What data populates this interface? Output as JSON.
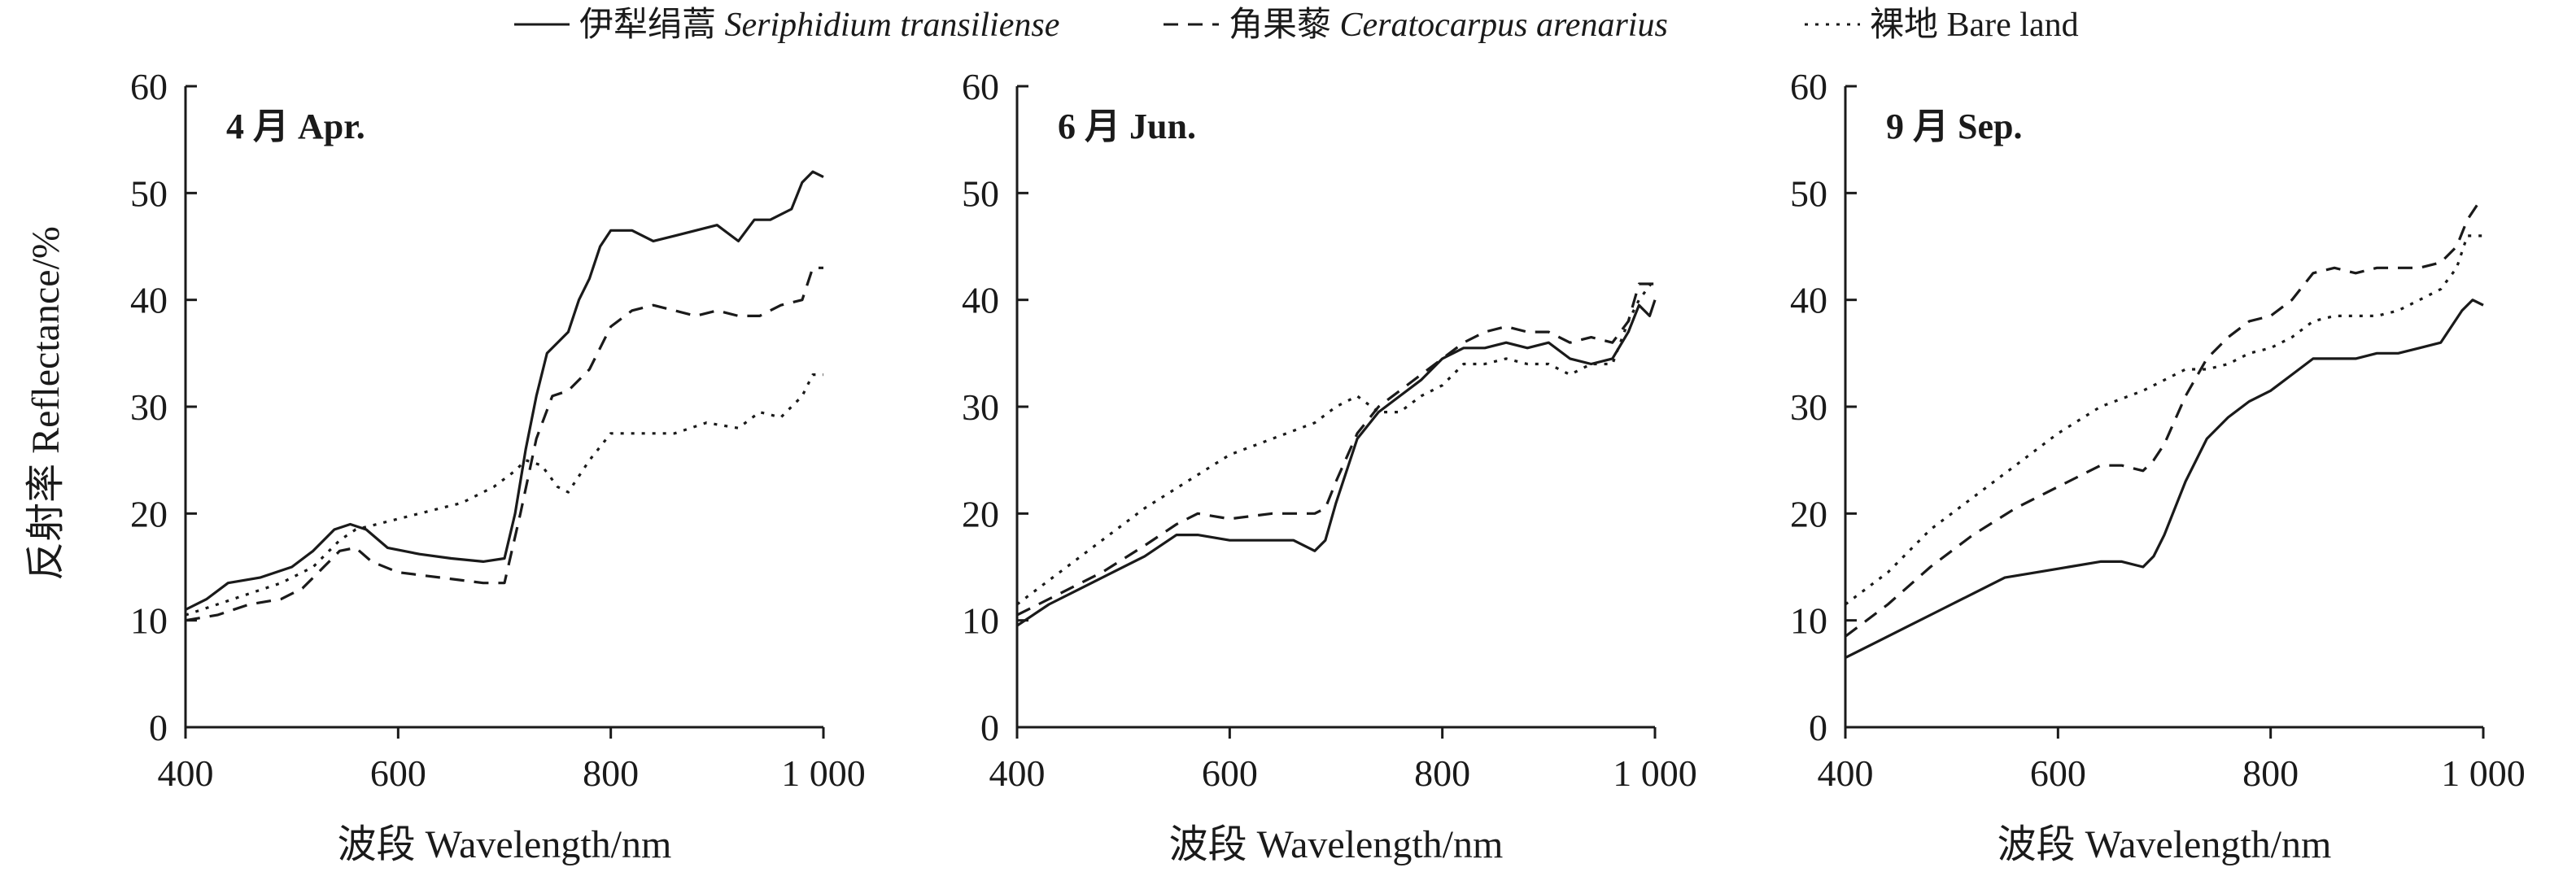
{
  "legend": {
    "items": [
      {
        "prefix": "伊犁绢蒿 ",
        "name": "Seriphidium transiliense",
        "dash": "solid"
      },
      {
        "prefix": "角果藜 ",
        "name": "Ceratocarpus arenarius",
        "dash": "dashed"
      },
      {
        "prefix": "裸地 ",
        "name": "Bare land",
        "dash": "dotted"
      }
    ]
  },
  "y_axis_title": "反射率 Reflectance/%",
  "chart_data": [
    {
      "type": "line",
      "panel_label": "4 月 Apr.",
      "xlabel": "波段 Wavelength/nm",
      "ylabel": "反射率 Reflectance/%",
      "xlim": [
        400,
        1000
      ],
      "ylim": [
        0,
        60
      ],
      "x_ticks": [
        400,
        600,
        800,
        1000
      ],
      "x_tick_labels": [
        "400",
        "600",
        "800",
        "1 000"
      ],
      "y_ticks": [
        0,
        10,
        20,
        30,
        40,
        50,
        60
      ],
      "y_tick_labels": [
        "0",
        "10",
        "20",
        "30",
        "40",
        "50",
        "60"
      ],
      "series": [
        {
          "name": "伊犁绢蒿 Seriphidium transiliense",
          "dash": "solid",
          "x": [
            400,
            420,
            440,
            470,
            500,
            520,
            540,
            555,
            570,
            590,
            620,
            650,
            680,
            700,
            710,
            720,
            730,
            740,
            750,
            760,
            770,
            780,
            790,
            800,
            820,
            840,
            860,
            880,
            900,
            920,
            935,
            950,
            970,
            980,
            990,
            1000
          ],
          "y": [
            11,
            12,
            13.5,
            14,
            15,
            16.5,
            18.5,
            19,
            18.5,
            16.8,
            16.2,
            15.8,
            15.5,
            15.8,
            20,
            26,
            31,
            35,
            36,
            37,
            40,
            42,
            45,
            46.5,
            46.5,
            45.5,
            46,
            46.5,
            47,
            45.5,
            47.5,
            47.5,
            48.5,
            51,
            52,
            51.5
          ]
        },
        {
          "name": "角果藜 Ceratocarpus arenarius",
          "dash": "dashed",
          "x": [
            400,
            430,
            460,
            490,
            510,
            530,
            545,
            560,
            575,
            600,
            640,
            680,
            700,
            715,
            730,
            745,
            760,
            780,
            800,
            820,
            840,
            860,
            880,
            900,
            920,
            940,
            960,
            980,
            990,
            1000
          ],
          "y": [
            10,
            10.5,
            11.5,
            12,
            13,
            15,
            16.5,
            16.8,
            15.5,
            14.5,
            14,
            13.5,
            13.5,
            20,
            27,
            31,
            31.5,
            33.5,
            37.5,
            39,
            39.5,
            39,
            38.5,
            39,
            38.5,
            38.5,
            39.5,
            40,
            43,
            43
          ]
        },
        {
          "name": "裸地 Bare land",
          "dash": "dotted",
          "x": [
            400,
            430,
            460,
            490,
            520,
            545,
            560,
            580,
            620,
            660,
            690,
            710,
            720,
            735,
            750,
            760,
            780,
            800,
            830,
            860,
            890,
            920,
            940,
            960,
            980,
            990,
            1000
          ],
          "y": [
            10.5,
            11.5,
            12.5,
            13.5,
            15,
            17.5,
            18.5,
            19,
            20,
            21,
            22.5,
            24,
            25,
            24.5,
            22.5,
            22,
            25,
            27.5,
            27.5,
            27.5,
            28.5,
            28,
            29.5,
            29,
            31,
            33,
            33
          ]
        }
      ]
    },
    {
      "type": "line",
      "panel_label": "6 月 Jun.",
      "xlabel": "波段 Wavelength/nm",
      "ylabel": "",
      "xlim": [
        400,
        1000
      ],
      "ylim": [
        0,
        60
      ],
      "x_ticks": [
        400,
        600,
        800,
        1000
      ],
      "x_tick_labels": [
        "400",
        "600",
        "800",
        "1 000"
      ],
      "y_ticks": [
        0,
        10,
        20,
        30,
        40,
        50,
        60
      ],
      "y_tick_labels": [
        "0",
        "10",
        "20",
        "30",
        "40",
        "50",
        "60"
      ],
      "series": [
        {
          "name": "伊犁绢蒿 Seriphidium transiliense",
          "dash": "solid",
          "x": [
            400,
            430,
            460,
            490,
            520,
            550,
            570,
            600,
            630,
            660,
            680,
            690,
            700,
            720,
            740,
            760,
            780,
            800,
            820,
            840,
            860,
            880,
            900,
            920,
            940,
            960,
            975,
            985,
            995,
            1000
          ],
          "y": [
            9.5,
            11.5,
            13,
            14.5,
            16,
            18,
            18,
            17.5,
            17.5,
            17.5,
            16.5,
            17.5,
            21,
            27,
            29.5,
            31,
            32.5,
            34.5,
            35.5,
            35.5,
            36,
            35.5,
            36,
            34.5,
            34,
            34.5,
            37,
            39.5,
            38.5,
            40
          ]
        },
        {
          "name": "角果藜 Ceratocarpus arenarius",
          "dash": "dashed",
          "x": [
            400,
            440,
            480,
            520,
            550,
            570,
            600,
            640,
            680,
            690,
            700,
            720,
            740,
            760,
            780,
            800,
            820,
            840,
            860,
            880,
            900,
            920,
            940,
            960,
            975,
            985,
            1000
          ],
          "y": [
            10.5,
            12.5,
            14.5,
            17,
            19,
            20,
            19.5,
            20,
            20,
            20.5,
            23,
            27.5,
            30,
            31.5,
            33,
            34.5,
            36,
            37,
            37.5,
            37,
            37,
            36,
            36.5,
            36,
            38,
            41.5,
            41.5
          ]
        },
        {
          "name": "裸地 Bare land",
          "dash": "dotted",
          "x": [
            400,
            440,
            480,
            520,
            560,
            600,
            640,
            680,
            700,
            710,
            720,
            740,
            760,
            780,
            800,
            820,
            840,
            860,
            880,
            900,
            920,
            940,
            960,
            975,
            985,
            1000
          ],
          "y": [
            11.5,
            14.5,
            17.5,
            20.5,
            23,
            25.5,
            27,
            28.5,
            30,
            30.5,
            31,
            29.5,
            29.5,
            31,
            32,
            34,
            34,
            34.5,
            34,
            34,
            33,
            34,
            34,
            38,
            40,
            42
          ]
        }
      ]
    },
    {
      "type": "line",
      "panel_label": "9 月 Sep.",
      "xlabel": "波段 Wavelength/nm",
      "ylabel": "",
      "xlim": [
        400,
        1000
      ],
      "ylim": [
        0,
        60
      ],
      "x_ticks": [
        400,
        600,
        800,
        1000
      ],
      "x_tick_labels": [
        "400",
        "600",
        "800",
        "1 000"
      ],
      "y_ticks": [
        0,
        10,
        20,
        30,
        40,
        50,
        60
      ],
      "y_tick_labels": [
        "0",
        "10",
        "20",
        "30",
        "40",
        "50",
        "60"
      ],
      "series": [
        {
          "name": "伊犁绢蒿 Seriphidium transiliense",
          "dash": "solid",
          "x": [
            400,
            430,
            460,
            490,
            520,
            550,
            580,
            610,
            640,
            660,
            680,
            690,
            700,
            720,
            740,
            760,
            780,
            800,
            820,
            840,
            860,
            880,
            900,
            920,
            940,
            960,
            980,
            990,
            1000
          ],
          "y": [
            6.5,
            8,
            9.5,
            11,
            12.5,
            14,
            14.5,
            15,
            15.5,
            15.5,
            15,
            16,
            18,
            23,
            27,
            29,
            30.5,
            31.5,
            33,
            34.5,
            34.5,
            34.5,
            35,
            35,
            35.5,
            36,
            39,
            40,
            39.5
          ]
        },
        {
          "name": "角果藜 Ceratocarpus arenarius",
          "dash": "dashed",
          "x": [
            400,
            440,
            480,
            520,
            560,
            600,
            640,
            660,
            680,
            690,
            700,
            720,
            740,
            760,
            780,
            800,
            820,
            840,
            860,
            880,
            900,
            920,
            940,
            960,
            975,
            985,
            995,
            1000
          ],
          "y": [
            8.5,
            11.5,
            15,
            18,
            20.5,
            22.5,
            24.5,
            24.5,
            24,
            25,
            26.5,
            31,
            34.5,
            36.5,
            38,
            38.5,
            40,
            42.5,
            43,
            42.5,
            43,
            43,
            43,
            43.5,
            45,
            47.5,
            49,
            49
          ]
        },
        {
          "name": "裸地 Bare land",
          "dash": "dotted",
          "x": [
            400,
            440,
            480,
            520,
            560,
            600,
            640,
            680,
            700,
            720,
            740,
            760,
            780,
            800,
            820,
            840,
            860,
            880,
            900,
            920,
            940,
            960,
            975,
            985,
            1000
          ],
          "y": [
            11.5,
            14.5,
            18.5,
            21.5,
            24.5,
            27.5,
            30,
            31.5,
            32.5,
            33.5,
            33.5,
            34,
            35,
            35.5,
            36.5,
            38,
            38.5,
            38.5,
            38.5,
            39,
            40,
            41,
            43,
            46,
            46
          ]
        }
      ]
    }
  ]
}
